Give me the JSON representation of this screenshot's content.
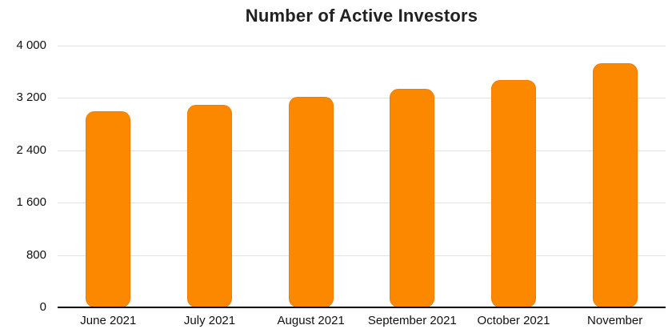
{
  "chart_data": {
    "type": "bar",
    "title": "Number of Active Investors",
    "categories": [
      "June 2021",
      "July 2021",
      "August 2021",
      "September 2021",
      "October 2021",
      "November"
    ],
    "values": [
      3000,
      3100,
      3220,
      3340,
      3480,
      3730
    ],
    "xlabel": "",
    "ylabel": "",
    "ylim": [
      0,
      4000
    ],
    "ytick_interval": 800,
    "ytick_labels": [
      "0",
      "800",
      "1 600",
      "2 400",
      "3 200",
      "4 000"
    ],
    "grid": "horizontal",
    "legend_position": "none",
    "colors": {
      "bar_fill": "#fc8800",
      "bar_edge": "#f07d00",
      "gridline": "#e2e2e2",
      "axis_line": "#000000",
      "tick_text": "#111111",
      "title_text": "#212121",
      "background": "#ffffff"
    }
  }
}
